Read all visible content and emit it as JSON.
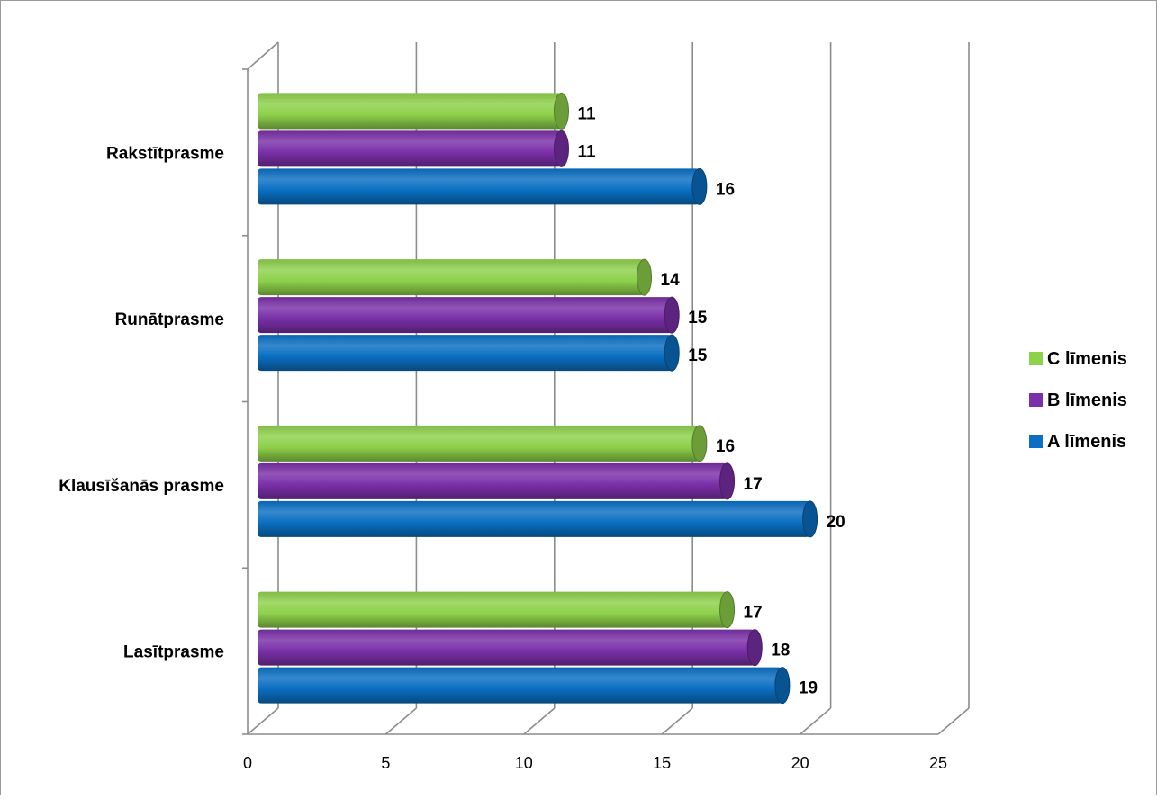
{
  "chart_data": {
    "type": "bar",
    "orientation": "horizontal",
    "categories": [
      "Lasītprasme",
      "Klausīšanās prasme",
      "Runātprasme",
      "Rakstītprasme"
    ],
    "series": [
      {
        "name": "A līmenis",
        "values": [
          19,
          20,
          15,
          16
        ],
        "color": "#0a6fc2"
      },
      {
        "name": "B līmenis",
        "values": [
          18,
          17,
          15,
          11
        ],
        "color": "#7a30a8"
      },
      {
        "name": "C līmenis",
        "values": [
          17,
          16,
          14,
          11
        ],
        "color": "#8ed14a"
      }
    ],
    "xlim": [
      0,
      25
    ],
    "xticks": [
      "0",
      "5",
      "10",
      "15",
      "20",
      "25"
    ],
    "grid": true,
    "legend_position": "right",
    "legend_order": [
      "C līmenis",
      "B līmenis",
      "A līmenis"
    ]
  }
}
